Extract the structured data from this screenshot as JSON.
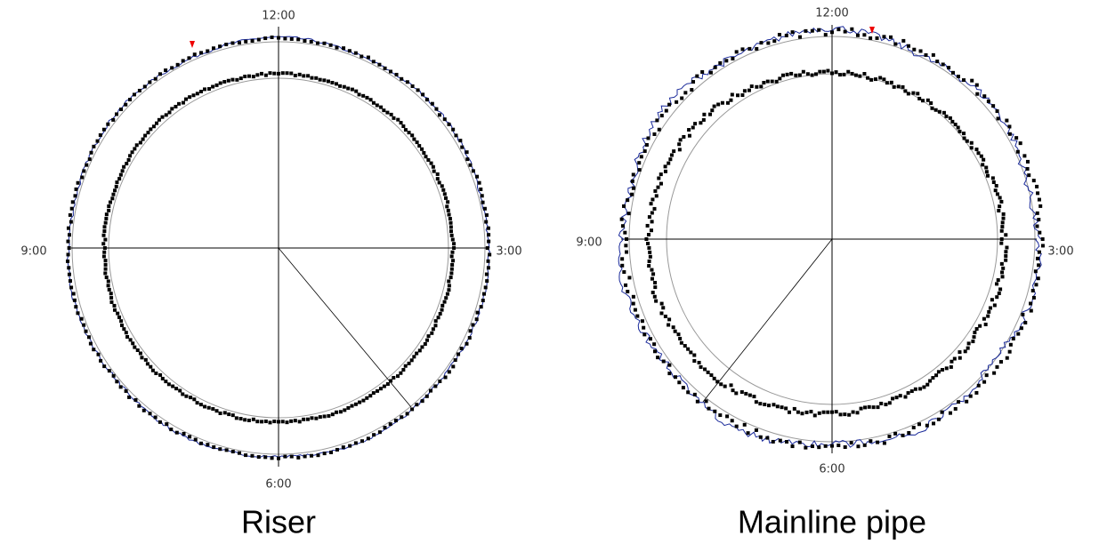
{
  "panels": [
    {
      "labels": {
        "top": "12:00",
        "left": "9:00",
        "right": "3:00",
        "bottom": "6:00"
      },
      "caption": "Riser"
    },
    {
      "labels": {
        "top": "12:00",
        "left": "9:00",
        "right": "3:00",
        "bottom": "6:00"
      },
      "caption": "Mainline pipe"
    }
  ]
}
